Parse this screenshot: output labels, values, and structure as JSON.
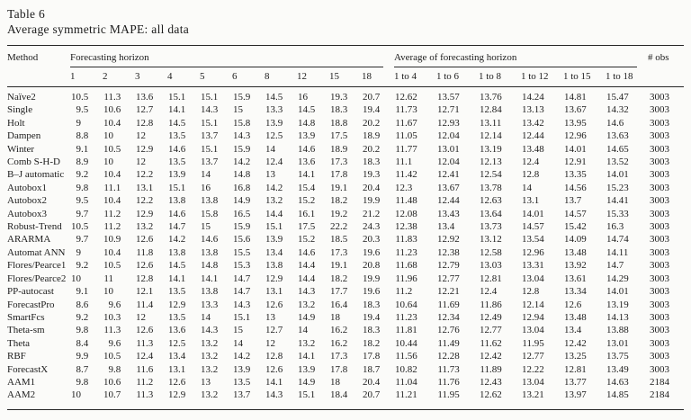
{
  "caption": {
    "label": "Table 6",
    "title": "Average symmetric MAPE: all data"
  },
  "table": {
    "method_header": "Method",
    "group_headers": {
      "horizon": "Forecasting horizon",
      "average": "Average of forecasting horizon",
      "obs": "# obs"
    },
    "horizon_columns": [
      "1",
      "2",
      "3",
      "4",
      "5",
      "6",
      "8",
      "12",
      "15",
      "18"
    ],
    "average_columns": [
      "1 to 4",
      "1 to 6",
      "1 to 8",
      "1 to 12",
      "1 to 15",
      "1 to 18"
    ],
    "rows": [
      {
        "method": "Naïve2",
        "horizon": [
          "10.5",
          "11.3",
          "13.6",
          "15.1",
          "15.1",
          "15.9",
          "14.5",
          "16",
          "19.3",
          "20.7"
        ],
        "averages": [
          "12.62",
          "13.57",
          "13.76",
          "14.24",
          "14.81",
          "15.47"
        ],
        "obs": "3003"
      },
      {
        "method": "Single",
        "horizon": [
          "9.5",
          "10.6",
          "12.7",
          "14.1",
          "14.3",
          "15",
          "13.3",
          "14.5",
          "18.3",
          "19.4"
        ],
        "averages": [
          "11.73",
          "12.71",
          "12.84",
          "13.13",
          "13.67",
          "14.32"
        ],
        "obs": "3003"
      },
      {
        "method": "Holt",
        "horizon": [
          "9",
          "10.4",
          "12.8",
          "14.5",
          "15.1",
          "15.8",
          "13.9",
          "14.8",
          "18.8",
          "20.2"
        ],
        "averages": [
          "11.67",
          "12.93",
          "13.11",
          "13.42",
          "13.95",
          "14.6"
        ],
        "obs": "3003"
      },
      {
        "method": "Dampen",
        "horizon": [
          "8.8",
          "10",
          "12",
          "13.5",
          "13.7",
          "14.3",
          "12.5",
          "13.9",
          "17.5",
          "18.9"
        ],
        "averages": [
          "11.05",
          "12.04",
          "12.14",
          "12.44",
          "12.96",
          "13.63"
        ],
        "obs": "3003"
      },
      {
        "method": "Winter",
        "horizon": [
          "9.1",
          "10.5",
          "12.9",
          "14.6",
          "15.1",
          "15.9",
          "14",
          "14.6",
          "18.9",
          "20.2"
        ],
        "averages": [
          "11.77",
          "13.01",
          "13.19",
          "13.48",
          "14.01",
          "14.65"
        ],
        "obs": "3003"
      },
      {
        "method": "Comb S-H-D",
        "horizon": [
          "8.9",
          "10",
          "12",
          "13.5",
          "13.7",
          "14.2",
          "12.4",
          "13.6",
          "17.3",
          "18.3"
        ],
        "averages": [
          "11.1",
          "12.04",
          "12.13",
          "12.4",
          "12.91",
          "13.52"
        ],
        "obs": "3003"
      },
      {
        "method": "B–J automatic",
        "horizon": [
          "9.2",
          "10.4",
          "12.2",
          "13.9",
          "14",
          "14.8",
          "13",
          "14.1",
          "17.8",
          "19.3"
        ],
        "averages": [
          "11.42",
          "12.41",
          "12.54",
          "12.8",
          "13.35",
          "14.01"
        ],
        "obs": "3003"
      },
      {
        "method": "Autobox1",
        "horizon": [
          "9.8",
          "11.1",
          "13.1",
          "15.1",
          "16",
          "16.8",
          "14.2",
          "15.4",
          "19.1",
          "20.4"
        ],
        "averages": [
          "12.3",
          "13.67",
          "13.78",
          "14",
          "14.56",
          "15.23"
        ],
        "obs": "3003"
      },
      {
        "method": "Autobox2",
        "horizon": [
          "9.5",
          "10.4",
          "12.2",
          "13.8",
          "13.8",
          "14.9",
          "13.2",
          "15.2",
          "18.2",
          "19.9"
        ],
        "averages": [
          "11.48",
          "12.44",
          "12.63",
          "13.1",
          "13.7",
          "14.41"
        ],
        "obs": "3003"
      },
      {
        "method": "Autobox3",
        "horizon": [
          "9.7",
          "11.2",
          "12.9",
          "14.6",
          "15.8",
          "16.5",
          "14.4",
          "16.1",
          "19.2",
          "21.2"
        ],
        "averages": [
          "12.08",
          "13.43",
          "13.64",
          "14.01",
          "14.57",
          "15.33"
        ],
        "obs": "3003"
      },
      {
        "method": "Robust-Trend",
        "horizon": [
          "10.5",
          "11.2",
          "13.2",
          "14.7",
          "15",
          "15.9",
          "15.1",
          "17.5",
          "22.2",
          "24.3"
        ],
        "averages": [
          "12.38",
          "13.4",
          "13.73",
          "14.57",
          "15.42",
          "16.3"
        ],
        "obs": "3003"
      },
      {
        "method": "ARARMA",
        "horizon": [
          "9.7",
          "10.9",
          "12.6",
          "14.2",
          "14.6",
          "15.6",
          "13.9",
          "15.2",
          "18.5",
          "20.3"
        ],
        "averages": [
          "11.83",
          "12.92",
          "13.12",
          "13.54",
          "14.09",
          "14.74"
        ],
        "obs": "3003"
      },
      {
        "method": "Automat ANN",
        "horizon": [
          "9",
          "10.4",
          "11.8",
          "13.8",
          "13.8",
          "15.5",
          "13.4",
          "14.6",
          "17.3",
          "19.6"
        ],
        "averages": [
          "11.23",
          "12.38",
          "12.58",
          "12.96",
          "13.48",
          "14.11"
        ],
        "obs": "3003"
      },
      {
        "method": "Flores/Pearce1",
        "horizon": [
          "9.2",
          "10.5",
          "12.6",
          "14.5",
          "14.8",
          "15.3",
          "13.8",
          "14.4",
          "19.1",
          "20.8"
        ],
        "averages": [
          "11.68",
          "12.79",
          "13.03",
          "13.31",
          "13.92",
          "14.7"
        ],
        "obs": "3003"
      },
      {
        "method": "Flores/Pearce2",
        "horizon": [
          "10",
          "11",
          "12.8",
          "14.1",
          "14.1",
          "14.7",
          "12.9",
          "14.4",
          "18.2",
          "19.9"
        ],
        "averages": [
          "11.96",
          "12.77",
          "12.81",
          "13.04",
          "13.61",
          "14.29"
        ],
        "obs": "3003"
      },
      {
        "method": "PP-autocast",
        "horizon": [
          "9.1",
          "10",
          "12.1",
          "13.5",
          "13.8",
          "14.7",
          "13.1",
          "14.3",
          "17.7",
          "19.6"
        ],
        "averages": [
          "11.2",
          "12.21",
          "12.4",
          "12.8",
          "13.34",
          "14.01"
        ],
        "obs": "3003"
      },
      {
        "method": "ForecastPro",
        "horizon": [
          "8.6",
          "9.6",
          "11.4",
          "12.9",
          "13.3",
          "14.3",
          "12.6",
          "13.2",
          "16.4",
          "18.3"
        ],
        "averages": [
          "10.64",
          "11.69",
          "11.86",
          "12.14",
          "12.6",
          "13.19"
        ],
        "obs": "3003"
      },
      {
        "method": "SmartFcs",
        "horizon": [
          "9.2",
          "10.3",
          "12",
          "13.5",
          "14",
          "15.1",
          "13",
          "14.9",
          "18",
          "19.4"
        ],
        "averages": [
          "11.23",
          "12.34",
          "12.49",
          "12.94",
          "13.48",
          "14.13"
        ],
        "obs": "3003"
      },
      {
        "method": "Theta-sm",
        "horizon": [
          "9.8",
          "11.3",
          "12.6",
          "13.6",
          "14.3",
          "15",
          "12.7",
          "14",
          "16.2",
          "18.3"
        ],
        "averages": [
          "11.81",
          "12.76",
          "12.77",
          "13.04",
          "13.4",
          "13.88"
        ],
        "obs": "3003"
      },
      {
        "method": "Theta",
        "horizon": [
          "8.4",
          "9.6",
          "11.3",
          "12.5",
          "13.2",
          "14",
          "12",
          "13.2",
          "16.2",
          "18.2"
        ],
        "averages": [
          "10.44",
          "11.49",
          "11.62",
          "11.95",
          "12.42",
          "13.01"
        ],
        "obs": "3003"
      },
      {
        "method": "RBF",
        "horizon": [
          "9.9",
          "10.5",
          "12.4",
          "13.4",
          "13.2",
          "14.2",
          "12.8",
          "14.1",
          "17.3",
          "17.8"
        ],
        "averages": [
          "11.56",
          "12.28",
          "12.42",
          "12.77",
          "13.25",
          "13.75"
        ],
        "obs": "3003"
      },
      {
        "method": "ForecastX",
        "horizon": [
          "8.7",
          "9.8",
          "11.6",
          "13.1",
          "13.2",
          "13.9",
          "12.6",
          "13.9",
          "17.8",
          "18.7"
        ],
        "averages": [
          "10.82",
          "11.73",
          "11.89",
          "12.22",
          "12.81",
          "13.49"
        ],
        "obs": "3003"
      },
      {
        "method": "AAM1",
        "horizon": [
          "9.8",
          "10.6",
          "11.2",
          "12.6",
          "13",
          "13.5",
          "14.1",
          "14.9",
          "18",
          "20.4"
        ],
        "averages": [
          "11.04",
          "11.76",
          "12.43",
          "13.04",
          "13.77",
          "14.63"
        ],
        "obs": "2184"
      },
      {
        "method": "AAM2",
        "horizon": [
          "10",
          "10.7",
          "11.3",
          "12.9",
          "13.2",
          "13.7",
          "14.3",
          "15.1",
          "18.4",
          "20.7"
        ],
        "averages": [
          "11.21",
          "11.95",
          "12.62",
          "13.21",
          "13.97",
          "14.85"
        ],
        "obs": "2184"
      }
    ]
  }
}
